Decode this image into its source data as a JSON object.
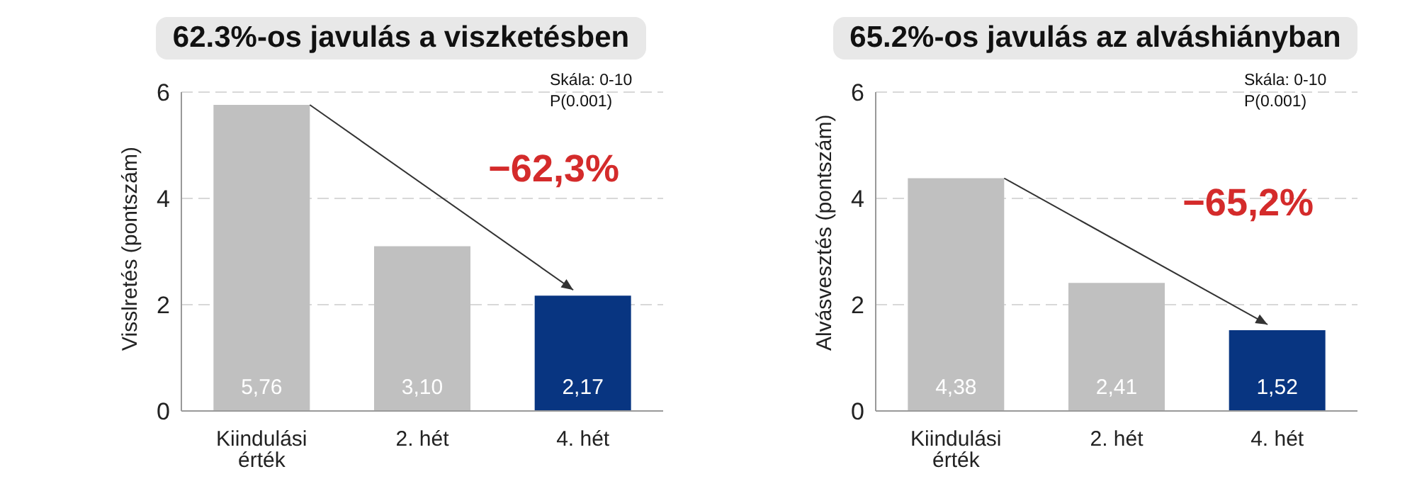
{
  "chart_data": [
    {
      "type": "bar",
      "title": "62.3%-os javulás a viszketésben",
      "ylabel": "Visslretés (pontszám)",
      "categories": [
        "Kiindulási érték",
        "2. hét",
        "4. hét"
      ],
      "values": [
        5.76,
        3.1,
        2.17
      ],
      "value_labels": [
        "5,76",
        "3,10",
        "2,17"
      ],
      "colors": [
        "#c0c0c0",
        "#c0c0c0",
        "#083581"
      ],
      "ylim": [
        0,
        6
      ],
      "yticks": [
        0,
        2,
        4,
        6
      ],
      "grid": "y",
      "annotations": [
        "Skála: 0-10",
        "P(0.001)",
        "−62,3%"
      ]
    },
    {
      "type": "bar",
      "title": "65.2%-os javulás az alváshiányban",
      "ylabel": "Alvásvesztés (pontszám)",
      "categories": [
        "Kiindulási érték",
        "2. hét",
        "4. hét"
      ],
      "values": [
        4.38,
        2.41,
        1.52
      ],
      "value_labels": [
        "4,38",
        "2,41",
        "1,52"
      ],
      "colors": [
        "#c0c0c0",
        "#c0c0c0",
        "#083581"
      ],
      "ylim": [
        0,
        6
      ],
      "yticks": [
        0,
        2,
        4,
        6
      ],
      "grid": "y",
      "annotations": [
        "Skála: 0-10",
        "P(0.001)",
        "−65,2%"
      ]
    }
  ]
}
